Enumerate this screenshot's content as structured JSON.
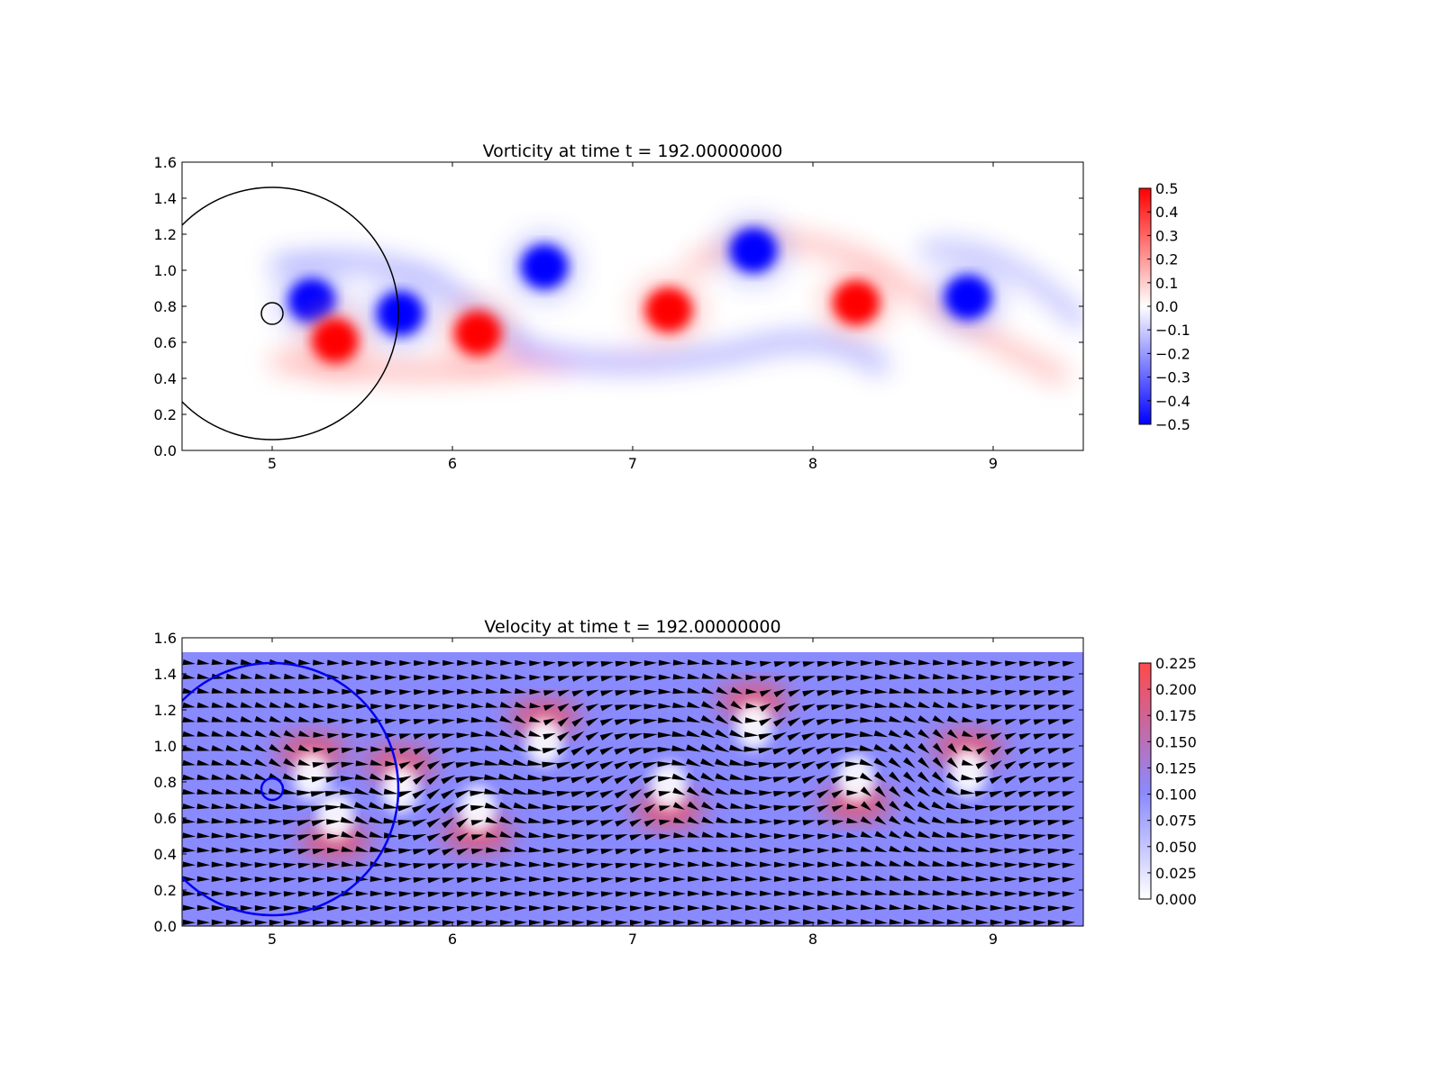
{
  "chart_data": [
    {
      "type": "heatmap",
      "title": "Vorticity at time t =   192.00000000",
      "xlabel": "",
      "ylabel": "",
      "xlim": [
        4.5,
        9.5
      ],
      "ylim": [
        0.0,
        1.6
      ],
      "xticks": [
        "5",
        "6",
        "7",
        "8",
        "9"
      ],
      "yticks": [
        "0.0",
        "0.2",
        "0.4",
        "0.6",
        "0.8",
        "1.0",
        "1.2",
        "1.4",
        "1.6"
      ],
      "grid": false,
      "colormap": "bwr",
      "colors": {
        "negative": "#0000ff",
        "zero": "#ffffff",
        "positive": "#ff0000"
      },
      "colorbar": {
        "range": [
          -0.5,
          0.5
        ],
        "ticks": [
          "0.5",
          "0.4",
          "0.3",
          "0.2",
          "0.1",
          "0.0",
          "−0.1",
          "−0.2",
          "−0.3",
          "−0.4",
          "−0.5"
        ]
      },
      "vortices": [
        {
          "x": 5.22,
          "y": 0.83,
          "sign": -1,
          "strength": 0.5
        },
        {
          "x": 5.35,
          "y": 0.61,
          "sign": 1,
          "strength": 0.5
        },
        {
          "x": 5.71,
          "y": 0.76,
          "sign": -1,
          "strength": 0.5
        },
        {
          "x": 6.14,
          "y": 0.65,
          "sign": 1,
          "strength": 0.5
        },
        {
          "x": 6.51,
          "y": 1.02,
          "sign": -1,
          "strength": 0.5
        },
        {
          "x": 7.2,
          "y": 0.78,
          "sign": 1,
          "strength": 0.5
        },
        {
          "x": 7.67,
          "y": 1.11,
          "sign": -1,
          "strength": 0.5
        },
        {
          "x": 8.24,
          "y": 0.82,
          "sign": 1,
          "strength": 0.5
        },
        {
          "x": 8.86,
          "y": 0.85,
          "sign": -1,
          "strength": 0.5
        }
      ],
      "circles": [
        {
          "cx": 5.0,
          "cy": 0.76,
          "r": 0.7,
          "color": "#000000"
        },
        {
          "cx": 5.0,
          "cy": 0.76,
          "r": 0.06,
          "color": "#000000"
        }
      ]
    },
    {
      "type": "heatmap",
      "title": "Velocity at time t =   192.00000000",
      "xlabel": "",
      "ylabel": "",
      "xlim": [
        4.5,
        9.5
      ],
      "ylim": [
        0.0,
        1.6
      ],
      "data_ylim": [
        0.0,
        1.52
      ],
      "xticks": [
        "5",
        "6",
        "7",
        "8",
        "9"
      ],
      "yticks": [
        "0.0",
        "0.2",
        "0.4",
        "0.6",
        "0.8",
        "1.0",
        "1.2",
        "1.4",
        "1.6"
      ],
      "grid": false,
      "colormap": "white-blue-red",
      "colors": {
        "low": "#ffffff",
        "mid": "#8a8aff",
        "high": "#ff4a4a"
      },
      "background_speed": 0.1,
      "colorbar": {
        "range": [
          0.0,
          0.225
        ],
        "ticks": [
          "0.225",
          "0.200",
          "0.175",
          "0.150",
          "0.125",
          "0.100",
          "0.075",
          "0.050",
          "0.025",
          "0.000"
        ]
      },
      "quiver": {
        "color": "#000000",
        "spacing_x": 0.08,
        "spacing_y": 0.08
      },
      "circles": [
        {
          "cx": 5.0,
          "cy": 0.76,
          "r": 0.7,
          "color": "#0000ee"
        },
        {
          "cx": 5.0,
          "cy": 0.76,
          "r": 0.06,
          "color": "#0000ee"
        }
      ]
    }
  ]
}
